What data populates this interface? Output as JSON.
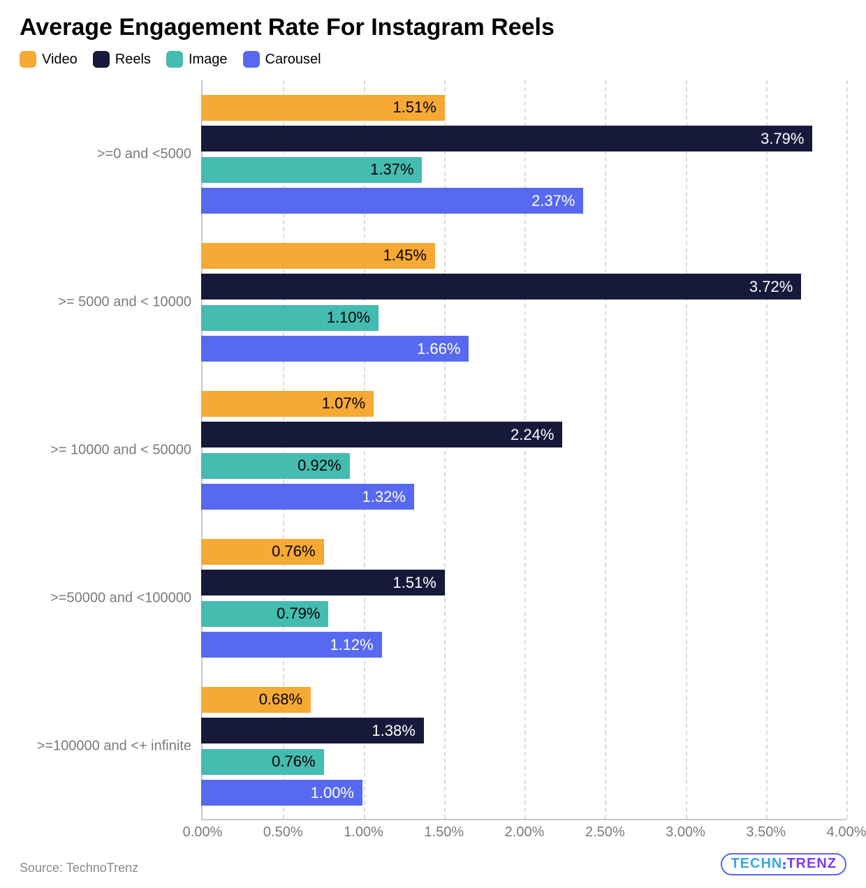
{
  "title": "Average Engagement Rate For Instagram Reels",
  "source_label": "Source: TechnoTrenz",
  "logo_text_a": "TECHN",
  "logo_text_b": "TRENZ",
  "chart": {
    "type": "grouped-horizontal-bar",
    "background_color": "#ffffff",
    "grid_color": "#dcdcdc",
    "axis_color": "#c7c7c7",
    "tick_label_color": "#7a7a7a",
    "title_fontsize": 34,
    "tick_fontsize": 20,
    "category_fontsize": 20,
    "bar_label_fontsize": 22,
    "xmin": 0.0,
    "xmax": 4.0,
    "xtick_step": 0.5,
    "xtick_format_suffix": "%",
    "xtick_decimals": 2,
    "series": [
      {
        "key": "video",
        "label": "Video",
        "color": "#f6a934",
        "label_text_color": "#000000"
      },
      {
        "key": "reels",
        "label": "Reels",
        "color": "#16193a",
        "label_text_color": "#ffffff"
      },
      {
        "key": "image",
        "label": "Image",
        "color": "#45bcb0",
        "label_text_color": "#000000"
      },
      {
        "key": "carousel",
        "label": "Carousel",
        "color": "#5769f0",
        "label_text_color": "#ffffff"
      }
    ],
    "categories": [
      {
        "label": ">=0 and <5000",
        "values": {
          "video": 1.51,
          "reels": 3.79,
          "image": 1.37,
          "carousel": 2.37
        }
      },
      {
        "label": ">= 5000 and < 10000",
        "values": {
          "video": 1.45,
          "reels": 3.72,
          "image": 1.1,
          "carousel": 1.66
        }
      },
      {
        "label": ">= 10000 and < 50000",
        "values": {
          "video": 1.07,
          "reels": 2.24,
          "image": 0.92,
          "carousel": 1.32
        }
      },
      {
        "label": ">=50000 and <100000",
        "values": {
          "video": 0.76,
          "reels": 1.51,
          "image": 0.79,
          "carousel": 1.12
        }
      },
      {
        "label": ">=100000 and <+ infinite",
        "values": {
          "video": 0.68,
          "reels": 1.38,
          "image": 0.76,
          "carousel": 1.0
        }
      }
    ]
  }
}
